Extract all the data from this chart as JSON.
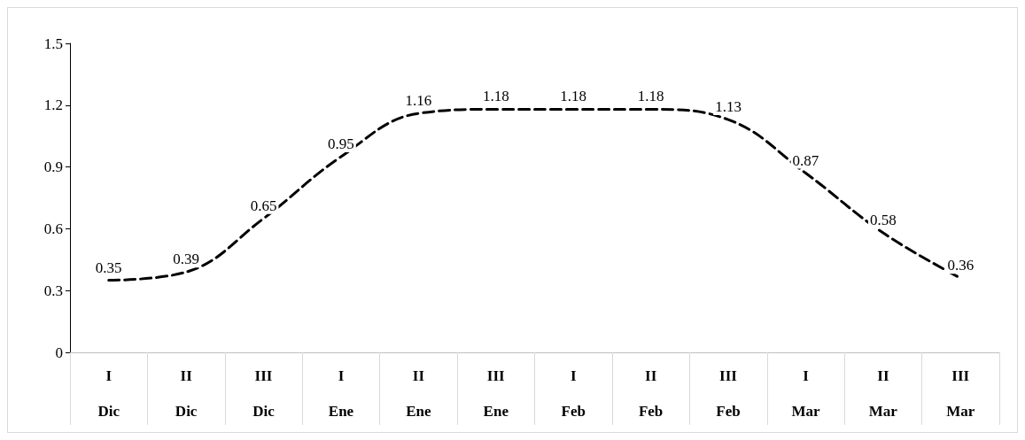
{
  "chart_data": {
    "type": "line",
    "categories": [
      "I\nDic",
      "II\nDic",
      "III\nDic",
      "I\nEne",
      "II\nEne",
      "III\nEne",
      "I\nFeb",
      "II\nFeb",
      "III\nFeb",
      "I\nMar",
      "II\nMar",
      "III\nMar"
    ],
    "series": [
      {
        "color": "#000000",
        "values": [
          0.35,
          0.39,
          0.65,
          0.95,
          1.16,
          1.18,
          1.18,
          1.18,
          1.13,
          0.87,
          0.58,
          0.36
        ]
      }
    ],
    "ylim": [
      0,
      1.5
    ],
    "yticks": [
      0,
      0.3,
      0.6,
      0.9,
      1.2,
      1.5
    ],
    "data_labels": true,
    "line_style": "dashed",
    "marker": "none",
    "grid": false
  }
}
